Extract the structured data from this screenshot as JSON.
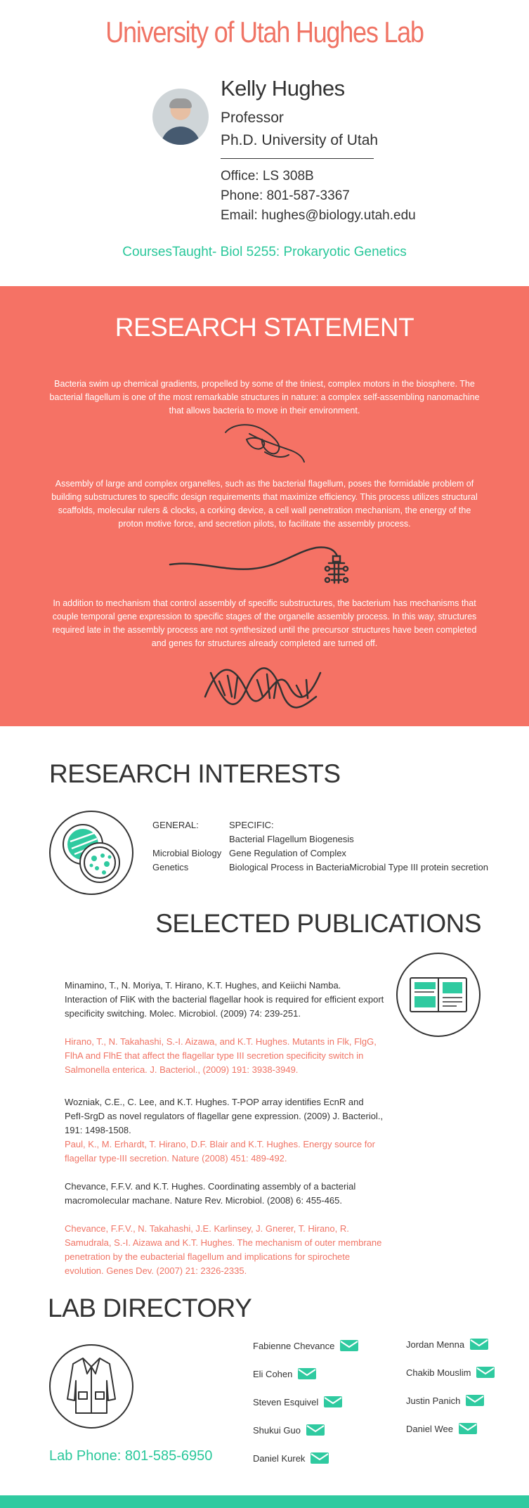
{
  "header": {
    "title": "University of Utah Hughes Lab",
    "name": "Kelly Hughes",
    "role": "Professor",
    "degree": "Ph.D. University of Utah",
    "office": "Office: LS 308B",
    "phone": "Phone: 801-587-3367",
    "email": "Email: hughes@biology.utah.edu",
    "courses": "CoursesTaught- Biol 5255: Prokaryotic Genetics"
  },
  "research_statement": {
    "title": "RESEARCH STATEMENT",
    "paragraphs": [
      "Bacteria swim up chemical gradients, propelled by some of the tiniest, complex motors in the biosphere. The bacterial flagellum is one of the most remarkable structures in nature: a complex self-assembling nanomachine that allows bacteria to move in their environment.",
      "Assembly of large and complex organelles, such as the bacterial flagellum, poses the formidable problem of building substructures to specific design requirements that maximize efficiency. This process utilizes structural scaffolds, molecular rulers & clocks, a corking device, a cell wall penetration mechanism, the energy of the proton motive force, and secretion pilots, to facilitate the assembly process.",
      "In addition to mechanism that control assembly of specific substructures, the bacterium has mechanisms that couple temporal gene expression to specific stages of the organelle assembly process. In this way, structures required late in the assembly process are not synthesized until the precursor structures have been completed and genes for structures already completed are turned off."
    ]
  },
  "research_interests": {
    "title": "RESEARCH INTERESTS",
    "general_label": "GENERAL:",
    "general_items": [
      "Microbial Biology",
      "Genetics"
    ],
    "specific_label": "SPECIFIC:",
    "specific_items": [
      "Bacterial Flagellum Biogenesis",
      "Gene Regulation of Complex",
      "Biological Process in BacteriaMicrobial Type III protein secretion"
    ]
  },
  "publications": {
    "title": "SELECTED PUBLICATIONS",
    "items": [
      "Minamino, T., N. Moriya, T. Hirano, K.T. Hughes, and Keiichi Namba. Interaction of FliK with the bacterial flagellar hook is required for efficient export specificity switching. Molec. Microbiol. (2009) 74: 239-251.",
      "Hirano, T., N. Takahashi, S.-I. Aizawa, and K.T. Hughes. Mutants in Flk, FlgG, FlhA and FlhE that affect the flagellar type III secretion specificity switch in Salmonella enterica. J. Bacteriol., (2009) 191: 3938-3949.",
      "Wozniak, C.E., C. Lee, and K.T. Hughes. T-POP array identifies EcnR and PefI-SrgD as novel regulators of flagellar gene expression. (2009) J. Bacteriol., 191: 1498-1508.",
      "Paul, K., M. Erhardt, T. Hirano, D.F. Blair and K.T. Hughes. Energy source for flagellar type-III secretion. Nature (2008) 451: 489-492.",
      "Chevance, F.F.V. and K.T. Hughes. Coordinating assembly of a bacterial macromolecular machane. Nature Rev. Microbiol. (2008) 6: 455-465.",
      "Chevance, F.F.V., N. Takahashi, J.E. Karlinsey, J. Gnerer, T. Hirano, R. Samudrala, S.-I. Aizawa and K.T. Hughes. The mechanism of outer membrane penetration by the eubacterial flagellum and implications for spirochete evolution. Genes Dev. (2007) 21: 2326-2335."
    ]
  },
  "lab_directory": {
    "title": "LAB DIRECTORY",
    "phone": "Lab Phone: 801-585-6950",
    "members_left": [
      "Fabienne Chevance",
      "Eli Cohen",
      "Steven Esquivel",
      "Shukui Guo",
      "Daniel Kurek"
    ],
    "members_right": [
      "Jordan Menna",
      "Chakib Mouslim",
      "Justin Panich",
      "Daniel Wee"
    ]
  },
  "colors": {
    "accent_red": "#f57265",
    "accent_teal": "#2fcaa0",
    "text_dark": "#333333"
  },
  "icons": [
    "portrait-photo",
    "flagellum-icon",
    "flagellum-motor-icon",
    "dna-icon",
    "petri-dish-icon",
    "book-icon",
    "lab-coat-icon",
    "mail-icon"
  ]
}
